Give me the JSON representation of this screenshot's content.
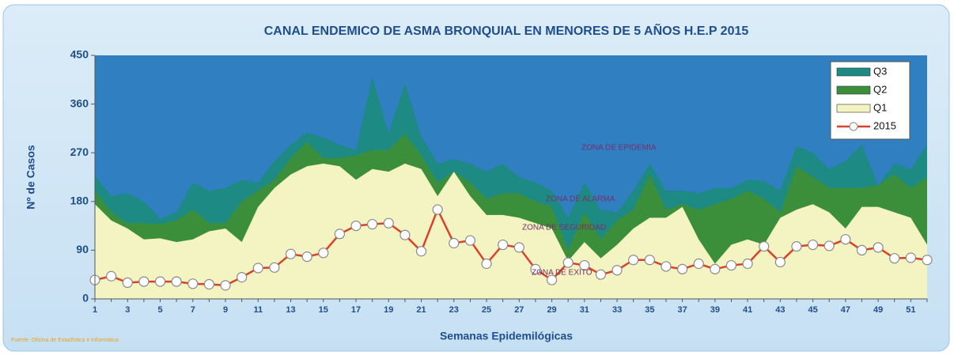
{
  "chart_data": {
    "type": "area",
    "title": "CANAL ENDEMICO DE ASMA BRONQUIAL EN MENORES DE 5 AÑOS  H.E.P 2015",
    "y_label": "Nº de Casos",
    "x_label": "Semanas Epidemilógicas",
    "source": "Fuente: Oficina de Estadística e Informática",
    "annotations": [
      "ZONA DE EPIDEMIA",
      "ZONA DE ALARMA",
      "ZONA DE SEGURIDAD",
      "ZONA DE EXITO"
    ],
    "categories": [
      "1",
      null,
      "3",
      null,
      "5",
      null,
      "7",
      null,
      "9",
      null,
      "11",
      null,
      "13",
      null,
      "15",
      null,
      "17",
      null,
      "19",
      null,
      "21",
      null,
      "23",
      null,
      "25",
      null,
      "27",
      null,
      "29",
      null,
      "31",
      null,
      "33",
      null,
      "35",
      null,
      "37",
      null,
      "39",
      null,
      "41",
      null,
      "43",
      null,
      "45",
      null,
      "47",
      null,
      "49",
      null,
      "51",
      null
    ],
    "ylim": [
      0,
      450
    ],
    "yticks": [
      0,
      90,
      180,
      270,
      360,
      450
    ],
    "background_color": "#2f7fc1",
    "legend": "top-right",
    "series": [
      {
        "name": "Q3",
        "color": "#1e8a84",
        "values": [
          228,
          190,
          195,
          180,
          148,
          160,
          215,
          200,
          205,
          220,
          215,
          255,
          285,
          308,
          298,
          285,
          275,
          410,
          305,
          398,
          300,
          250,
          258,
          250,
          235,
          250,
          225,
          215,
          200,
          150,
          215,
          165,
          160,
          200,
          250,
          200,
          200,
          195,
          205,
          205,
          220,
          218,
          200,
          283,
          270,
          240,
          255,
          285,
          210,
          250,
          240,
          285
        ]
      },
      {
        "name": "Q2",
        "color": "#3c8f3a",
        "values": [
          200,
          160,
          140,
          140,
          138,
          145,
          165,
          140,
          140,
          180,
          200,
          220,
          260,
          290,
          260,
          260,
          265,
          275,
          275,
          305,
          265,
          215,
          235,
          215,
          185,
          195,
          195,
          180,
          170,
          90,
          160,
          110,
          145,
          165,
          230,
          165,
          175,
          165,
          175,
          185,
          200,
          185,
          160,
          245,
          225,
          205,
          205,
          205,
          210,
          230,
          205,
          225
        ]
      },
      {
        "name": "Q1",
        "color": "#f3f4c2",
        "values": [
          175,
          145,
          130,
          110,
          112,
          105,
          110,
          125,
          130,
          105,
          170,
          205,
          230,
          245,
          250,
          245,
          220,
          240,
          235,
          250,
          240,
          190,
          235,
          190,
          155,
          155,
          150,
          140,
          130,
          70,
          105,
          75,
          100,
          130,
          150,
          150,
          170,
          110,
          65,
          100,
          110,
          100,
          150,
          165,
          175,
          160,
          130,
          170,
          170,
          160,
          150,
          100
        ]
      },
      {
        "name": "2015",
        "type": "line",
        "color": "#d9412b",
        "values": [
          35,
          42,
          30,
          32,
          32,
          32,
          28,
          27,
          25,
          40,
          57,
          58,
          83,
          78,
          85,
          120,
          135,
          138,
          140,
          118,
          88,
          165,
          103,
          108,
          65,
          100,
          95,
          55,
          35,
          67,
          62,
          45,
          53,
          72,
          72,
          60,
          55,
          65,
          55,
          62,
          65,
          97,
          68,
          97,
          100,
          98,
          110,
          90,
          95,
          75,
          76,
          72
        ]
      }
    ]
  }
}
